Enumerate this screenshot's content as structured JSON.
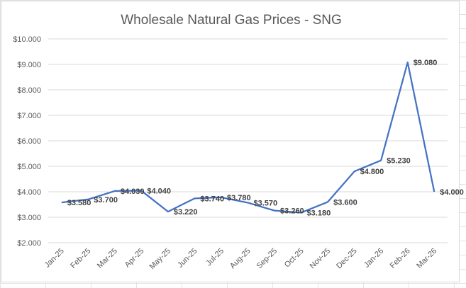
{
  "chart_data": {
    "type": "line",
    "title": "Wholesale Natural Gas Prices - SNG",
    "xlabel": "",
    "ylabel": "",
    "categories": [
      "Jan-25",
      "Feb-25",
      "Mar-25",
      "Apr-25",
      "May-25",
      "Jun-25",
      "Jul-25",
      "Aug-25",
      "Sep-25",
      "Oct-25",
      "Nov-25",
      "Dec-25",
      "Jan-26",
      "Feb-26",
      "Mar-26"
    ],
    "values": [
      3.58,
      3.7,
      4.03,
      4.04,
      3.22,
      3.74,
      3.78,
      3.57,
      3.26,
      3.18,
      3.6,
      4.8,
      5.23,
      9.08,
      4.0
    ],
    "data_labels": [
      "$3.580",
      "$3.700",
      "$4.030",
      "$4.040",
      "$3.220",
      "$3.740",
      "$3.780",
      "$3.570",
      "$3.260",
      "$3.180",
      "$3.600",
      "$4.800",
      "$5.230",
      "$9.080",
      "$4.000"
    ],
    "ylim": [
      2,
      10
    ],
    "y_ticks": [
      "$2.000",
      "$3.000",
      "$4.000",
      "$5.000",
      "$6.000",
      "$7.000",
      "$8.000",
      "$9.000",
      "$10.000"
    ],
    "grid": true,
    "legend": "none",
    "line_color": "#4472C4"
  }
}
